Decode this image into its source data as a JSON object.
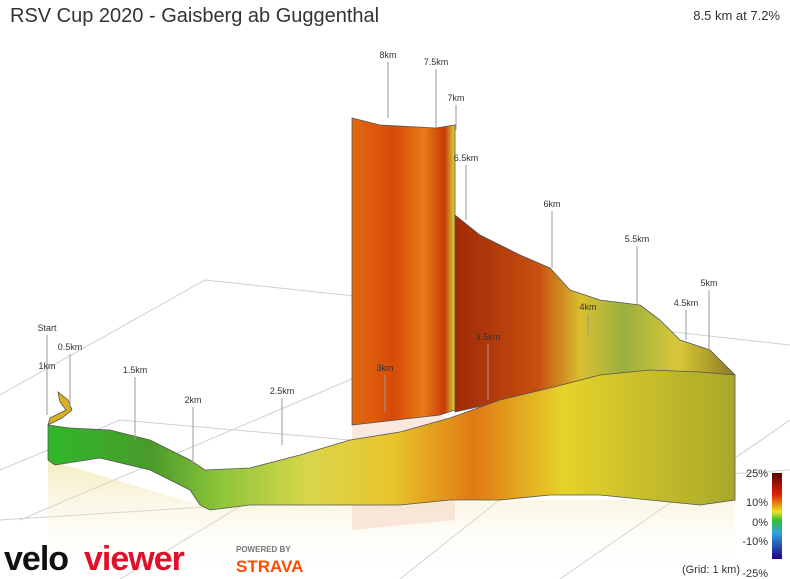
{
  "header": {
    "title": "RSV Cup 2020 - Gaisberg ab Guggenthal",
    "summary": "8.5 km at 7.2%"
  },
  "markers": [
    "Start",
    "0.5km",
    "1km",
    "1.5km",
    "2km",
    "2.5km",
    "3km",
    "3.5km",
    "4km",
    "4.5km",
    "5km",
    "5.5km",
    "6km",
    "6.5km",
    "7km",
    "7.5km",
    "8km"
  ],
  "scale": {
    "labels": [
      "25%",
      "10%",
      "0%",
      "-10%",
      "-25%"
    ],
    "grid": "(Grid: 1 km)"
  },
  "logo": {
    "velo": "velo",
    "viewer": "viewer",
    "powered": "POWERED BY",
    "strava": "STRAVA"
  }
}
